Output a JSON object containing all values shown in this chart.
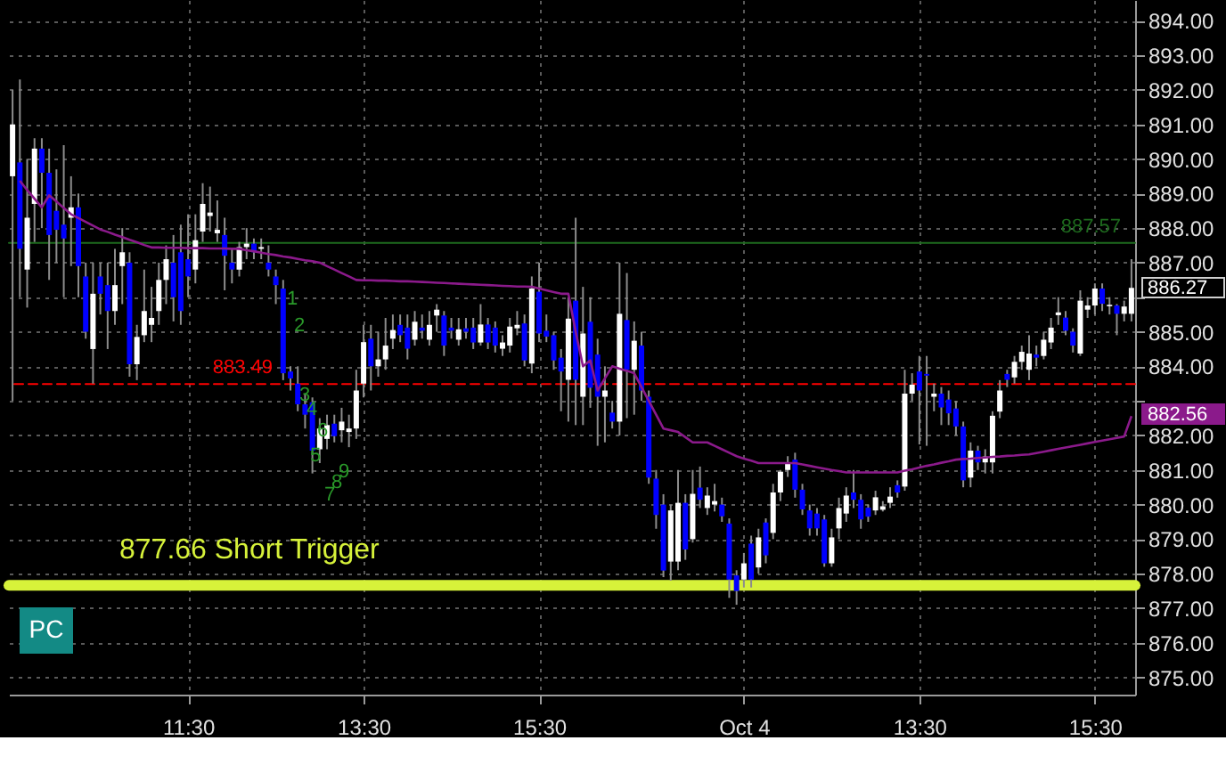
{
  "chart_data": {
    "type": "candlestick",
    "categories": [
      null,
      null,
      null,
      null,
      null,
      null,
      null,
      null,
      null,
      null,
      null,
      null,
      null,
      null,
      null,
      null,
      null,
      null,
      null,
      null,
      null,
      null,
      null,
      null,
      "11:30",
      null,
      null,
      null,
      null,
      null,
      null,
      null,
      null,
      null,
      null,
      null,
      null,
      null,
      null,
      null,
      null,
      null,
      null,
      null,
      null,
      null,
      null,
      null,
      "13:30",
      null,
      null,
      null,
      null,
      null,
      null,
      null,
      null,
      null,
      null,
      null,
      null,
      null,
      null,
      null,
      null,
      null,
      null,
      null,
      null,
      null,
      null,
      null,
      "15:30",
      null,
      null,
      null,
      null,
      null,
      null,
      null,
      null,
      null,
      null,
      null,
      null,
      null,
      null,
      null,
      null,
      null,
      null,
      null,
      null,
      null,
      null,
      null,
      null,
      null,
      null,
      null,
      "Oct 4",
      null,
      null,
      null,
      null,
      null,
      null,
      null,
      null,
      null,
      null,
      null,
      null,
      null,
      null,
      null,
      null,
      null,
      null,
      null,
      null,
      null,
      null,
      null,
      "13:30",
      null,
      null,
      null,
      null,
      null,
      null,
      null,
      null,
      null,
      null,
      null,
      null,
      null,
      null,
      null,
      null,
      null,
      null,
      null,
      null,
      null,
      null,
      null,
      "15:30",
      null,
      null,
      null,
      null,
      null
    ],
    "ohlc": [
      [
        889.5,
        892.0,
        883.0,
        891.0
      ],
      [
        889.9,
        892.3,
        886.0,
        887.4
      ],
      [
        886.8,
        890.0,
        885.7,
        888.3
      ],
      [
        888.7,
        890.6,
        887.6,
        890.3
      ],
      [
        890.3,
        890.6,
        888.0,
        889.6
      ],
      [
        889.6,
        890.3,
        886.5,
        887.8
      ],
      [
        888.5,
        889.7,
        887.0,
        887.95
      ],
      [
        888.1,
        890.4,
        886.0,
        887.7
      ],
      [
        888.3,
        889.5,
        886.9,
        888.6
      ],
      [
        888.6,
        889.0,
        886.0,
        886.9
      ],
      [
        886.6,
        887.0,
        884.8,
        885.0
      ],
      [
        884.5,
        887.0,
        883.5,
        886.1
      ],
      [
        886.6,
        887.0,
        885.5,
        886.1
      ],
      [
        886.35,
        887.0,
        884.5,
        885.6
      ],
      [
        885.6,
        887.4,
        885.2,
        886.35
      ],
      [
        886.9,
        888.0,
        885.8,
        887.3
      ],
      [
        887.0,
        887.3,
        883.7,
        884.06
      ],
      [
        884.06,
        885.2,
        883.6,
        884.85
      ],
      [
        884.9,
        886.8,
        884.7,
        885.6
      ],
      [
        885.2,
        886.3,
        884.7,
        885.4
      ],
      [
        885.6,
        887.0,
        885.2,
        886.5
      ],
      [
        886.5,
        887.5,
        885.8,
        887.1
      ],
      [
        887.0,
        887.8,
        885.3,
        886.0
      ],
      [
        887.3,
        888.1,
        885.2,
        885.6
      ],
      [
        887.1,
        888.4,
        886.0,
        886.6
      ],
      [
        886.8,
        888.4,
        886.4,
        887.65
      ],
      [
        887.9,
        889.3,
        887.6,
        888.7
      ],
      [
        888.35,
        889.2,
        887.9,
        888.45
      ],
      [
        887.85,
        888.8,
        887.6,
        887.95
      ],
      [
        887.8,
        888.3,
        886.2,
        887.2
      ],
      [
        887.0,
        887.4,
        886.4,
        886.8
      ],
      [
        886.8,
        887.6,
        886.6,
        887.45
      ],
      [
        887.45,
        888.0,
        887.1,
        887.55
      ],
      [
        887.55,
        887.7,
        887.1,
        887.3
      ],
      [
        887.4,
        887.7,
        887.1,
        887.45
      ],
      [
        887.0,
        887.5,
        886.6,
        886.8
      ],
      [
        886.6,
        886.8,
        885.8,
        886.35
      ],
      [
        886.25,
        886.5,
        883.6,
        883.8
      ],
      [
        883.85,
        884.0,
        883.3,
        883.65
      ],
      [
        883.5,
        884.0,
        882.7,
        882.9
      ],
      [
        882.9,
        883.2,
        882.2,
        882.6
      ],
      [
        882.96,
        883.1,
        880.9,
        881.56
      ],
      [
        881.6,
        882.5,
        881.2,
        882.2
      ],
      [
        881.9,
        882.6,
        881.6,
        882.3
      ],
      [
        882.34,
        882.6,
        881.8,
        881.98
      ],
      [
        882.15,
        882.8,
        881.8,
        882.4
      ],
      [
        882.1,
        882.6,
        881.66,
        882.2
      ],
      [
        882.2,
        883.9,
        881.9,
        883.3
      ],
      [
        883.5,
        885.2,
        883.1,
        884.7
      ],
      [
        884.8,
        885.2,
        883.3,
        884.0
      ],
      [
        884.0,
        885.0,
        883.7,
        884.2
      ],
      [
        884.2,
        885.4,
        883.9,
        884.6
      ],
      [
        884.8,
        885.5,
        884.5,
        885.05
      ],
      [
        885.2,
        885.5,
        884.7,
        884.9
      ],
      [
        885.12,
        885.5,
        884.2,
        884.51
      ],
      [
        884.77,
        885.6,
        884.6,
        885.29
      ],
      [
        885.12,
        885.5,
        884.8,
        885.03
      ],
      [
        884.77,
        885.6,
        884.6,
        885.2
      ],
      [
        885.47,
        885.8,
        885.0,
        885.64
      ],
      [
        885.47,
        885.6,
        884.3,
        884.6
      ],
      [
        885.12,
        885.4,
        884.8,
        885.03
      ],
      [
        884.77,
        885.4,
        884.6,
        885.07
      ],
      [
        885.1,
        885.4,
        884.8,
        885.0
      ],
      [
        885.12,
        885.4,
        884.5,
        884.69
      ],
      [
        884.69,
        885.8,
        884.6,
        885.21
      ],
      [
        885.21,
        885.4,
        884.5,
        884.69
      ],
      [
        885.12,
        885.3,
        884.4,
        884.6
      ],
      [
        884.51,
        884.9,
        884.3,
        884.69
      ],
      [
        884.6,
        885.4,
        884.4,
        885.15
      ],
      [
        885.1,
        885.6,
        884.9,
        885.2
      ],
      [
        885.24,
        885.5,
        884.0,
        884.17
      ],
      [
        884.08,
        886.6,
        883.8,
        886.25
      ],
      [
        886.16,
        887.0,
        884.7,
        884.95
      ],
      [
        885.03,
        885.5,
        884.7,
        884.86
      ],
      [
        884.9,
        885.0,
        883.9,
        884.17
      ],
      [
        884.25,
        884.5,
        882.7,
        883.85
      ],
      [
        883.61,
        886.0,
        882.4,
        885.38
      ],
      [
        885.9,
        888.3,
        882.3,
        883.61
      ],
      [
        883.12,
        886.3,
        882.3,
        884.95
      ],
      [
        885.29,
        886.0,
        882.8,
        883.38
      ],
      [
        884.34,
        884.8,
        881.7,
        883.12
      ],
      [
        883.12,
        884.0,
        881.8,
        883.3
      ],
      [
        882.66,
        883.0,
        882.2,
        882.4
      ],
      [
        882.4,
        887.0,
        882.0,
        885.52
      ],
      [
        885.34,
        886.7,
        882.5,
        883.9
      ],
      [
        883.9,
        885.3,
        882.6,
        884.74
      ],
      [
        884.6,
        885.0,
        883.0,
        883.3
      ],
      [
        883.12,
        883.3,
        880.6,
        880.78
      ],
      [
        880.75,
        881.0,
        879.3,
        879.7
      ],
      [
        880.0,
        880.3,
        877.9,
        878.09
      ],
      [
        878.35,
        880.0,
        877.8,
        879.83
      ],
      [
        878.35,
        881.0,
        878.1,
        880.05
      ],
      [
        880.05,
        880.3,
        878.4,
        878.7
      ],
      [
        879.0,
        881.0,
        878.9,
        880.31
      ],
      [
        880.49,
        881.1,
        879.9,
        880.14
      ],
      [
        879.9,
        880.5,
        879.7,
        880.26
      ],
      [
        880.0,
        880.6,
        879.8,
        880.1
      ],
      [
        880.0,
        880.2,
        879.5,
        879.66
      ],
      [
        879.45,
        879.6,
        877.3,
        877.83
      ],
      [
        877.95,
        878.1,
        877.1,
        877.5
      ],
      [
        877.83,
        878.6,
        877.6,
        878.3
      ],
      [
        878.87,
        879.1,
        877.6,
        877.83
      ],
      [
        878.18,
        879.3,
        878.0,
        879.05
      ],
      [
        879.48,
        879.6,
        878.3,
        878.53
      ],
      [
        879.18,
        880.6,
        879.0,
        880.35
      ],
      [
        880.35,
        881.0,
        880.1,
        880.95
      ],
      [
        881.0,
        881.4,
        880.8,
        881.2
      ],
      [
        881.3,
        881.5,
        880.2,
        880.43
      ],
      [
        880.43,
        880.6,
        879.7,
        879.86
      ],
      [
        879.83,
        880.0,
        879.1,
        879.31
      ],
      [
        879.74,
        879.9,
        879.1,
        879.31
      ],
      [
        879.57,
        879.7,
        878.2,
        878.3
      ],
      [
        878.3,
        879.3,
        878.2,
        879.05
      ],
      [
        879.31,
        880.2,
        879.0,
        879.9
      ],
      [
        879.74,
        880.5,
        879.5,
        880.26
      ],
      [
        880.35,
        881.0,
        879.9,
        880.14
      ],
      [
        880.14,
        880.3,
        879.3,
        879.57
      ],
      [
        879.91,
        880.0,
        879.5,
        879.65
      ],
      [
        879.83,
        880.4,
        879.7,
        880.21
      ],
      [
        879.85,
        880.1,
        879.8,
        879.95
      ],
      [
        880.05,
        880.5,
        879.9,
        880.23
      ],
      [
        880.56,
        880.7,
        880.2,
        880.35
      ],
      [
        880.52,
        883.9,
        880.4,
        883.21
      ],
      [
        883.21,
        883.8,
        883.0,
        883.47
      ],
      [
        883.85,
        884.3,
        881.74,
        883.3
      ],
      [
        883.78,
        884.3,
        881.7,
        883.73
      ],
      [
        883.12,
        883.5,
        882.7,
        883.21
      ],
      [
        883.21,
        883.4,
        882.3,
        882.81
      ],
      [
        883.04,
        883.3,
        882.3,
        882.64
      ],
      [
        882.78,
        883.0,
        882.0,
        882.26
      ],
      [
        882.26,
        882.4,
        880.5,
        880.7
      ],
      [
        880.78,
        881.8,
        880.5,
        881.56
      ],
      [
        881.56,
        881.7,
        881.0,
        881.22
      ],
      [
        881.22,
        881.6,
        880.9,
        881.39
      ],
      [
        881.22,
        882.7,
        880.9,
        882.57
      ],
      [
        882.69,
        883.6,
        882.5,
        883.3
      ],
      [
        883.78,
        883.9,
        883.4,
        883.61
      ],
      [
        883.68,
        884.3,
        883.5,
        884.13
      ],
      [
        884.13,
        884.6,
        883.9,
        884.42
      ],
      [
        883.9,
        884.9,
        883.6,
        884.37
      ],
      [
        884.34,
        884.6,
        884.0,
        884.25
      ],
      [
        884.3,
        885.0,
        884.2,
        884.77
      ],
      [
        884.69,
        885.4,
        884.5,
        885.12
      ],
      [
        885.48,
        886.0,
        885.2,
        885.56
      ],
      [
        885.41,
        885.6,
        884.9,
        885.03
      ],
      [
        885.0,
        885.1,
        884.4,
        884.6
      ],
      [
        884.37,
        886.2,
        884.3,
        885.9
      ],
      [
        885.64,
        886.0,
        885.4,
        885.76
      ],
      [
        885.76,
        886.4,
        885.5,
        886.25
      ],
      [
        886.25,
        886.4,
        885.6,
        885.81
      ],
      [
        885.74,
        886.0,
        885.5,
        885.78
      ],
      [
        885.76,
        885.8,
        884.9,
        885.52
      ],
      [
        885.52,
        885.9,
        885.3,
        885.73
      ],
      [
        885.52,
        887.1,
        885.3,
        886.27
      ]
    ],
    "colors": [
      "#ffffff",
      "#0000ff",
      "#ffffff",
      "#ffffff",
      "#0000ff",
      "#0000ff",
      "#0000ff",
      "#0000ff",
      "#ffffff",
      "#0000ff",
      "#0000ff",
      "#ffffff",
      "#0000ff",
      "#0000ff",
      "#ffffff",
      "#ffffff",
      "#0000ff",
      "#ffffff",
      "#ffffff",
      "#ffffff",
      "#ffffff",
      "#ffffff",
      "#0000ff",
      "#0000ff",
      "#0000ff",
      "#ffffff",
      "#ffffff",
      "#ffffff",
      "#ffffff",
      "#0000ff",
      "#0000ff",
      "#ffffff",
      "#ffffff",
      "#0000ff",
      "#ffffff",
      "#0000ff",
      "#0000ff",
      "#0000ff",
      "#0000ff",
      "#0000ff",
      "#0000ff",
      "#0000ff",
      "#ffffff",
      "#ffffff",
      "#0000ff",
      "#ffffff",
      "#ffffff",
      "#ffffff",
      "#ffffff",
      "#0000ff",
      "#ffffff",
      "#ffffff",
      "#ffffff",
      "#0000ff",
      "#0000ff",
      "#ffffff",
      "#0000ff",
      "#ffffff",
      "#ffffff",
      "#0000ff",
      "#0000ff",
      "#ffffff",
      "#0000ff",
      "#0000ff",
      "#ffffff",
      "#0000ff",
      "#0000ff",
      "#ffffff",
      "#ffffff",
      "#ffffff",
      "#0000ff",
      "#ffffff",
      "#0000ff",
      "#0000ff",
      "#0000ff",
      "#0000ff",
      "#ffffff",
      "#0000ff",
      "#ffffff",
      "#0000ff",
      "#0000ff",
      "#ffffff",
      "#0000ff",
      "#ffffff",
      "#0000ff",
      "#ffffff",
      "#0000ff",
      "#0000ff",
      "#0000ff",
      "#0000ff",
      "#ffffff",
      "#ffffff",
      "#0000ff",
      "#ffffff",
      "#0000ff",
      "#ffffff",
      "#ffffff",
      "#0000ff",
      "#0000ff",
      "#0000ff",
      "#ffffff",
      "#0000ff",
      "#ffffff",
      "#0000ff",
      "#ffffff",
      "#ffffff",
      "#ffffff",
      "#0000ff",
      "#0000ff",
      "#0000ff",
      "#0000ff",
      "#0000ff",
      "#ffffff",
      "#ffffff",
      "#ffffff",
      "#0000ff",
      "#0000ff",
      "#0000ff",
      "#ffffff",
      "#ffffff",
      "#ffffff",
      "#0000ff",
      "#ffffff",
      "#ffffff",
      "#0000ff",
      "#0000ff",
      "#ffffff",
      "#0000ff",
      "#0000ff",
      "#0000ff",
      "#0000ff",
      "#ffffff",
      "#0000ff",
      "#ffffff",
      "#ffffff",
      "#ffffff",
      "#0000ff",
      "#ffffff",
      "#ffffff",
      "#ffffff",
      "#0000ff",
      "#ffffff",
      "#ffffff",
      "#ffffff",
      "#0000ff",
      "#0000ff",
      "#ffffff",
      "#ffffff",
      "#ffffff",
      "#0000ff",
      "#ffffff",
      "#0000ff",
      "#ffffff",
      "#ffffff"
    ],
    "series": [
      {
        "type": "line",
        "color": "#8b1a8b",
        "values": [
          null,
          889.37,
          889.1,
          888.85,
          888.6,
          888.95,
          888.77,
          888.58,
          888.4,
          888.29,
          888.18,
          888.07,
          887.96,
          887.89,
          887.81,
          887.74,
          887.66,
          887.59,
          887.51,
          887.44,
          887.44,
          887.43,
          887.43,
          887.43,
          887.42,
          887.42,
          887.42,
          887.41,
          887.41,
          887.41,
          887.4,
          887.4,
          887.36,
          887.33,
          887.29,
          887.25,
          887.22,
          887.18,
          887.15,
          887.11,
          887.07,
          887.04,
          887.0,
          886.9,
          886.8,
          886.7,
          886.6,
          886.5,
          886.49,
          886.49,
          886.48,
          886.48,
          886.47,
          886.46,
          886.46,
          886.45,
          886.44,
          886.43,
          886.42,
          886.41,
          886.4,
          886.39,
          886.38,
          886.37,
          886.36,
          886.35,
          886.34,
          886.33,
          886.32,
          886.31,
          886.31,
          886.3,
          886.25,
          886.2,
          886.15,
          886.1,
          886.1,
          885.0,
          884.0,
          884.17,
          883.3,
          883.65,
          884.0,
          883.93,
          883.87,
          883.8,
          883.4,
          883.0,
          882.6,
          882.2,
          882.15,
          882.1,
          881.95,
          881.8,
          881.8,
          881.8,
          881.7,
          881.6,
          881.5,
          881.4,
          881.33,
          881.27,
          881.2,
          881.2,
          881.2,
          881.2,
          881.2,
          881.2,
          881.16,
          881.12,
          881.08,
          881.04,
          881.0,
          880.97,
          880.93,
          880.93,
          880.93,
          880.93,
          880.93,
          880.93,
          880.93,
          880.93,
          880.98,
          881.02,
          881.07,
          881.12,
          881.16,
          881.21,
          881.25,
          881.3,
          881.32,
          881.33,
          881.35,
          881.36,
          881.38,
          881.39,
          881.41,
          881.42,
          881.44,
          881.45,
          881.49,
          881.53,
          881.57,
          881.61,
          881.65,
          881.69,
          881.73,
          881.77,
          881.81,
          881.85,
          881.89,
          881.93,
          881.97,
          882.56
        ]
      }
    ],
    "ylim": [
      874.5,
      894.6
    ],
    "yticks": [
      {
        "value": 875,
        "label": "875.00"
      },
      {
        "value": 876,
        "label": "876.00"
      },
      {
        "value": 877,
        "label": "877.00"
      },
      {
        "value": 878,
        "label": "878.00"
      },
      {
        "value": 879,
        "label": "879.00"
      },
      {
        "value": 880,
        "label": "880.00"
      },
      {
        "value": 881,
        "label": "881.00"
      },
      {
        "value": 882,
        "label": "882.00"
      },
      {
        "value": 883,
        "label": null
      },
      {
        "value": 884,
        "label": "884.00"
      },
      {
        "value": 885,
        "label": "885.00"
      },
      {
        "value": 886,
        "label": null
      },
      {
        "value": 887,
        "label": "887.00"
      },
      {
        "value": 888,
        "label": "888.00"
      },
      {
        "value": 889,
        "label": "889.00"
      },
      {
        "value": 890,
        "label": "890.00"
      },
      {
        "value": 891,
        "label": "891.00"
      },
      {
        "value": 892,
        "label": "892.00"
      },
      {
        "value": 893,
        "label": "893.00"
      },
      {
        "value": 894,
        "label": "894.00"
      }
    ],
    "grid": true,
    "ref_lines": [
      {
        "axis": "y",
        "value": 887.57,
        "label": "887.57",
        "color": "#1e6b1e"
      },
      {
        "axis": "y",
        "value": 883.49,
        "label": "883.49",
        "color": "#ff0000",
        "line_style": "dashed"
      },
      {
        "axis": "y",
        "value": 877.66,
        "label": "877.66 Short Trigger",
        "color": "#d7f23a"
      }
    ],
    "annotations": [
      "1",
      "2",
      "3",
      "4",
      "5",
      "6",
      "7",
      "8",
      "9",
      "886.27",
      "882.56",
      "PC"
    ]
  }
}
